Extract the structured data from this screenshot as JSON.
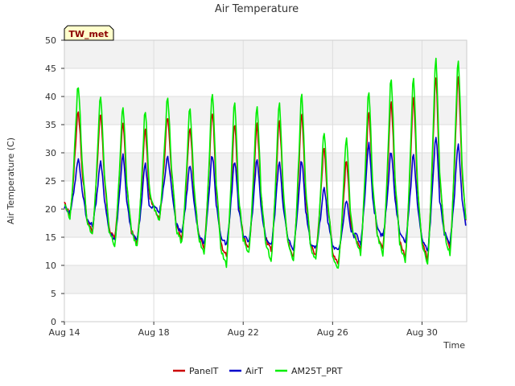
{
  "chart_data": {
    "type": "line",
    "title": "Air Temperature",
    "xlabel": "Time",
    "ylabel": "Air Temperature (C)",
    "badge": "TW_met",
    "ylim": [
      0,
      50
    ],
    "yticks": [
      0,
      5,
      10,
      15,
      20,
      25,
      30,
      35,
      40,
      45,
      50
    ],
    "xlim": [
      "2023-08-14",
      "2023-09-01"
    ],
    "xticks": [
      {
        "date": "2023-08-14",
        "label": "Aug 14"
      },
      {
        "date": "2023-08-18",
        "label": "Aug 18"
      },
      {
        "date": "2023-08-22",
        "label": "Aug 22"
      },
      {
        "date": "2023-08-26",
        "label": "Aug 26"
      },
      {
        "date": "2023-08-30",
        "label": "Aug 30"
      }
    ],
    "grid": true,
    "legend": "bottom",
    "series": [
      {
        "name": "PanelT",
        "color": "#cc0000",
        "daily": [
          {
            "date": "2023-08-14",
            "min": 19.0,
            "max": 38.0
          },
          {
            "date": "2023-08-15",
            "min": 16.0,
            "max": 37.5
          },
          {
            "date": "2023-08-16",
            "min": 14.5,
            "max": 36.0
          },
          {
            "date": "2023-08-17",
            "min": 14.0,
            "max": 34.5
          },
          {
            "date": "2023-08-18",
            "min": 18.5,
            "max": 37.0
          },
          {
            "date": "2023-08-19",
            "min": 15.0,
            "max": 35.0
          },
          {
            "date": "2023-08-20",
            "min": 13.0,
            "max": 38.0
          },
          {
            "date": "2023-08-21",
            "min": 11.5,
            "max": 35.5
          },
          {
            "date": "2023-08-22",
            "min": 13.0,
            "max": 35.5
          },
          {
            "date": "2023-08-23",
            "min": 12.5,
            "max": 36.0
          },
          {
            "date": "2023-08-24",
            "min": 11.5,
            "max": 37.5
          },
          {
            "date": "2023-08-25",
            "min": 12.0,
            "max": 31.5
          },
          {
            "date": "2023-08-26",
            "min": 10.5,
            "max": 29.0
          },
          {
            "date": "2023-08-27",
            "min": 12.5,
            "max": 38.0
          },
          {
            "date": "2023-08-28",
            "min": 13.0,
            "max": 40.0
          },
          {
            "date": "2023-08-29",
            "min": 11.5,
            "max": 40.5
          },
          {
            "date": "2023-08-30",
            "min": 11.0,
            "max": 44.0
          },
          {
            "date": "2023-08-31",
            "min": 13.0,
            "max": 44.0
          }
        ]
      },
      {
        "name": "AirT",
        "color": "#0000cc",
        "daily": [
          {
            "date": "2023-08-14",
            "min": 19.5,
            "max": 29.0
          },
          {
            "date": "2023-08-15",
            "min": 17.0,
            "max": 28.5
          },
          {
            "date": "2023-08-16",
            "min": 14.5,
            "max": 30.0
          },
          {
            "date": "2023-08-17",
            "min": 14.5,
            "max": 28.5
          },
          {
            "date": "2023-08-18",
            "min": 19.5,
            "max": 29.5
          },
          {
            "date": "2023-08-19",
            "min": 16.0,
            "max": 28.0
          },
          {
            "date": "2023-08-20",
            "min": 14.0,
            "max": 30.0
          },
          {
            "date": "2023-08-21",
            "min": 13.5,
            "max": 29.0
          },
          {
            "date": "2023-08-22",
            "min": 14.0,
            "max": 29.0
          },
          {
            "date": "2023-08-23",
            "min": 13.5,
            "max": 29.0
          },
          {
            "date": "2023-08-24",
            "min": 13.0,
            "max": 29.0
          },
          {
            "date": "2023-08-25",
            "min": 13.0,
            "max": 24.0
          },
          {
            "date": "2023-08-26",
            "min": 12.5,
            "max": 22.0
          },
          {
            "date": "2023-08-27",
            "min": 14.0,
            "max": 32.0
          },
          {
            "date": "2023-08-28",
            "min": 15.0,
            "max": 30.5
          },
          {
            "date": "2023-08-29",
            "min": 14.0,
            "max": 30.0
          },
          {
            "date": "2023-08-30",
            "min": 12.5,
            "max": 33.5
          },
          {
            "date": "2023-08-31",
            "min": 14.0,
            "max": 32.0
          }
        ]
      },
      {
        "name": "AM25T_PRT",
        "color": "#00ee00",
        "daily": [
          {
            "date": "2023-08-14",
            "min": 18.5,
            "max": 42.5
          },
          {
            "date": "2023-08-15",
            "min": 15.5,
            "max": 40.5
          },
          {
            "date": "2023-08-16",
            "min": 13.5,
            "max": 39.0
          },
          {
            "date": "2023-08-17",
            "min": 13.5,
            "max": 38.0
          },
          {
            "date": "2023-08-18",
            "min": 18.0,
            "max": 40.5
          },
          {
            "date": "2023-08-19",
            "min": 14.0,
            "max": 38.5
          },
          {
            "date": "2023-08-20",
            "min": 12.0,
            "max": 41.5
          },
          {
            "date": "2023-08-21",
            "min": 10.0,
            "max": 39.5
          },
          {
            "date": "2023-08-22",
            "min": 12.0,
            "max": 39.0
          },
          {
            "date": "2023-08-23",
            "min": 11.0,
            "max": 39.5
          },
          {
            "date": "2023-08-24",
            "min": 11.0,
            "max": 41.0
          },
          {
            "date": "2023-08-25",
            "min": 11.0,
            "max": 34.5
          },
          {
            "date": "2023-08-26",
            "min": 9.5,
            "max": 33.0
          },
          {
            "date": "2023-08-27",
            "min": 12.0,
            "max": 41.5
          },
          {
            "date": "2023-08-28",
            "min": 12.0,
            "max": 44.0
          },
          {
            "date": "2023-08-29",
            "min": 10.5,
            "max": 44.0
          },
          {
            "date": "2023-08-30",
            "min": 10.0,
            "max": 47.5
          },
          {
            "date": "2023-08-31",
            "min": 12.0,
            "max": 47.5
          }
        ]
      }
    ]
  }
}
